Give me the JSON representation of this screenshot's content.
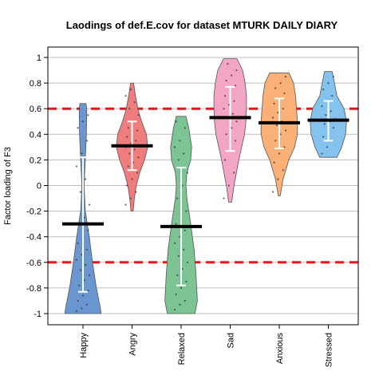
{
  "chart_data": {
    "type": "violin",
    "title": "Laodings of def.E.cov for dataset MTURK DAILY DIARY",
    "xlabel": "",
    "ylabel": "Factor loading of F3",
    "ylim": [
      -1.05,
      1.05
    ],
    "yticks": [
      1,
      0.8,
      0.6,
      0.4,
      0.2,
      0,
      -0.2,
      -0.4,
      -0.6,
      -0.8,
      -1
    ],
    "ytick_labels": [
      "1",
      "0.8",
      "0.6",
      "0.4",
      "0.2",
      "0",
      "-0.2",
      "-0.4",
      "-0.6",
      "-0.8",
      "-1"
    ],
    "grid": true,
    "reference_lines": [
      0.6,
      -0.6
    ],
    "reference_line_color": "#e8161b",
    "categories": [
      "Happy",
      "Angry",
      "Relaxed",
      "Sad",
      "Anxious",
      "Stressed"
    ],
    "series": [
      {
        "category": "Happy",
        "color": "#6b97d1",
        "median": -0.3,
        "whisker_low": -0.83,
        "whisker_high": 0.22,
        "profile": [
          [
            -1.0,
            0.95
          ],
          [
            -0.95,
            0.9
          ],
          [
            -0.8,
            0.7
          ],
          [
            -0.6,
            0.5
          ],
          [
            -0.4,
            0.33
          ],
          [
            -0.2,
            0.12
          ],
          [
            0.0,
            0.06
          ],
          [
            0.2,
            0.12
          ],
          [
            0.4,
            0.18
          ],
          [
            0.6,
            0.2
          ],
          [
            0.64,
            0.16
          ]
        ],
        "points": [
          -0.98,
          -0.96,
          -0.93,
          -0.9,
          -0.86,
          -0.82,
          -0.78,
          -0.74,
          -0.7,
          -0.66,
          -0.62,
          -0.58,
          -0.54,
          -0.5,
          -0.45,
          -0.4,
          -0.35,
          -0.3,
          -0.25,
          -0.15,
          -0.05,
          0.05,
          0.15,
          0.25,
          0.35,
          0.45,
          0.5,
          0.55,
          0.6
        ]
      },
      {
        "category": "Angry",
        "color": "#f07d7d",
        "median": 0.31,
        "whisker_low": 0.12,
        "whisker_high": 0.5,
        "profile": [
          [
            -0.2,
            0.06
          ],
          [
            -0.1,
            0.12
          ],
          [
            0.0,
            0.22
          ],
          [
            0.1,
            0.4
          ],
          [
            0.2,
            0.65
          ],
          [
            0.3,
            0.82
          ],
          [
            0.4,
            0.75
          ],
          [
            0.5,
            0.5
          ],
          [
            0.6,
            0.3
          ],
          [
            0.7,
            0.18
          ],
          [
            0.8,
            0.08
          ]
        ],
        "points": [
          -0.15,
          -0.1,
          -0.05,
          0.0,
          0.05,
          0.1,
          0.15,
          0.18,
          0.22,
          0.25,
          0.28,
          0.3,
          0.33,
          0.35,
          0.38,
          0.4,
          0.43,
          0.45,
          0.5,
          0.55,
          0.6,
          0.65,
          0.7,
          0.75
        ]
      },
      {
        "category": "Relaxed",
        "color": "#7cc494",
        "median": -0.32,
        "whisker_low": -0.78,
        "whisker_high": 0.14,
        "profile": [
          [
            -1.0,
            0.72
          ],
          [
            -0.9,
            0.85
          ],
          [
            -0.7,
            0.78
          ],
          [
            -0.5,
            0.68
          ],
          [
            -0.3,
            0.5
          ],
          [
            -0.1,
            0.3
          ],
          [
            0.0,
            0.25
          ],
          [
            0.1,
            0.3
          ],
          [
            0.2,
            0.5
          ],
          [
            0.3,
            0.55
          ],
          [
            0.45,
            0.4
          ],
          [
            0.54,
            0.25
          ]
        ],
        "points": [
          -0.97,
          -0.93,
          -0.9,
          -0.85,
          -0.8,
          -0.75,
          -0.7,
          -0.65,
          -0.6,
          -0.55,
          -0.5,
          -0.45,
          -0.4,
          -0.35,
          -0.3,
          -0.25,
          -0.2,
          -0.1,
          0.0,
          0.1,
          0.2,
          0.25,
          0.3,
          0.35,
          0.45,
          0.5
        ]
      },
      {
        "category": "Sad",
        "color": "#f3a5c6",
        "median": 0.53,
        "whisker_low": 0.27,
        "whisker_high": 0.77,
        "profile": [
          [
            -0.13,
            0.08
          ],
          [
            0.0,
            0.2
          ],
          [
            0.2,
            0.45
          ],
          [
            0.4,
            0.75
          ],
          [
            0.5,
            0.82
          ],
          [
            0.6,
            0.85
          ],
          [
            0.7,
            0.85
          ],
          [
            0.8,
            0.78
          ],
          [
            0.9,
            0.65
          ],
          [
            0.99,
            0.35
          ]
        ],
        "points": [
          -0.1,
          0.0,
          0.1,
          0.2,
          0.28,
          0.35,
          0.4,
          0.45,
          0.5,
          0.53,
          0.56,
          0.6,
          0.63,
          0.66,
          0.7,
          0.74,
          0.78,
          0.82,
          0.86,
          0.9,
          0.95
        ]
      },
      {
        "category": "Anxious",
        "color": "#fbb077",
        "median": 0.49,
        "whisker_low": 0.29,
        "whisker_high": 0.68,
        "profile": [
          [
            -0.08,
            0.05
          ],
          [
            0.05,
            0.2
          ],
          [
            0.2,
            0.5
          ],
          [
            0.3,
            0.8
          ],
          [
            0.4,
            0.95
          ],
          [
            0.5,
            0.95
          ],
          [
            0.6,
            0.9
          ],
          [
            0.7,
            0.85
          ],
          [
            0.8,
            0.75
          ],
          [
            0.88,
            0.5
          ]
        ],
        "points": [
          -0.05,
          0.05,
          0.12,
          0.18,
          0.25,
          0.3,
          0.35,
          0.4,
          0.43,
          0.47,
          0.5,
          0.53,
          0.57,
          0.6,
          0.64,
          0.68,
          0.72,
          0.76,
          0.8,
          0.85
        ]
      },
      {
        "category": "Stressed",
        "color": "#84c3ee",
        "median": 0.51,
        "whisker_low": 0.35,
        "whisker_high": 0.66,
        "profile": [
          [
            0.22,
            0.45
          ],
          [
            0.3,
            0.7
          ],
          [
            0.4,
            0.9
          ],
          [
            0.5,
            0.95
          ],
          [
            0.6,
            0.82
          ],
          [
            0.7,
            0.45
          ],
          [
            0.8,
            0.32
          ],
          [
            0.89,
            0.2
          ]
        ],
        "points": [
          0.25,
          0.3,
          0.35,
          0.38,
          0.42,
          0.45,
          0.48,
          0.5,
          0.52,
          0.55,
          0.58,
          0.62,
          0.66,
          0.7,
          0.75,
          0.8,
          0.85
        ]
      }
    ]
  }
}
